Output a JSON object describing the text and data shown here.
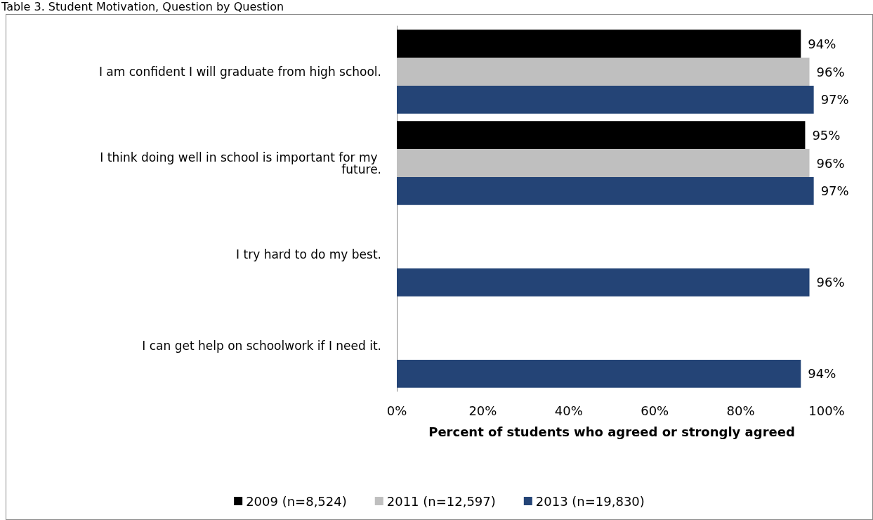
{
  "chart_data": {
    "type": "bar",
    "orientation": "horizontal",
    "title": "Table 3. Student Motivation, Question by Question",
    "xlabel": "Percent of students who agreed or strongly agreed",
    "categories": [
      "I am confident I will graduate from high school.",
      "I think doing well in school is important for my future.",
      "I try hard to do my best.",
      "I can get help on schoolwork if I need it."
    ],
    "series": [
      {
        "name": "2009 (n=8,524)",
        "color": "#000000",
        "values": [
          94,
          95,
          null,
          null
        ],
        "value_labels": [
          "94%",
          "95%",
          null,
          null
        ]
      },
      {
        "name": "2011 (n=12,597)",
        "color": "#bfbfbf",
        "values": [
          96,
          96,
          null,
          null
        ],
        "value_labels": [
          "96%",
          "96%",
          null,
          null
        ]
      },
      {
        "name": "2013 (n=19,830)",
        "color": "#244476",
        "values": [
          97,
          97,
          96,
          94
        ],
        "value_labels": [
          "97%",
          "97%",
          "96%",
          "94%"
        ]
      }
    ],
    "xlim": [
      0,
      100
    ],
    "xticks": [
      {
        "value": 0,
        "label": "0%"
      },
      {
        "value": 20,
        "label": "20%"
      },
      {
        "value": 40,
        "label": "40%"
      },
      {
        "value": 60,
        "label": "60%"
      },
      {
        "value": 80,
        "label": "80%"
      },
      {
        "value": 100,
        "label": "100%"
      }
    ],
    "grid": false,
    "legend": "bottom"
  }
}
